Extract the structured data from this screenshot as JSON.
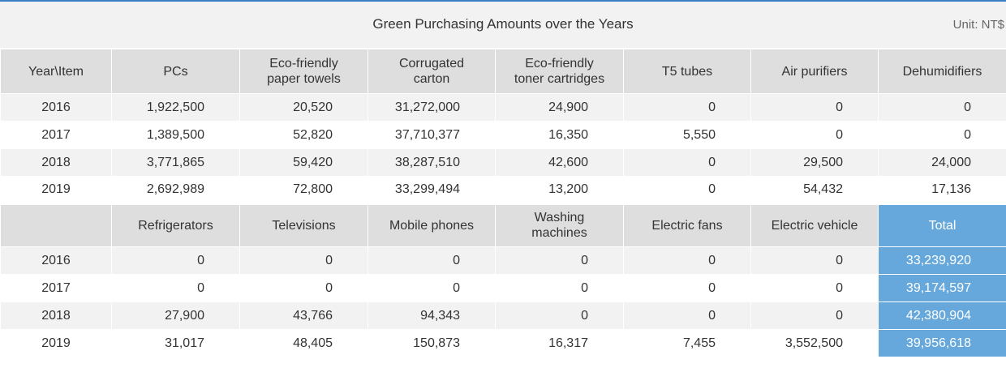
{
  "title": "Green Purchasing Amounts over the Years",
  "unit": "Unit: NT$",
  "table1": {
    "headers": [
      "Year\\Item",
      "PCs",
      "Eco-friendly paper towels",
      "Corrugated carton",
      "Eco-friendly toner cartridges",
      "T5 tubes",
      "Air purifiers",
      "Dehumidifiers"
    ],
    "header_lines": [
      [
        "Year\\Item"
      ],
      [
        "PCs"
      ],
      [
        "Eco-friendly",
        "paper towels"
      ],
      [
        "Corrugated",
        "carton"
      ],
      [
        "Eco-friendly",
        "toner cartridges"
      ],
      [
        "T5 tubes"
      ],
      [
        "Air purifiers"
      ],
      [
        "Dehumidifiers"
      ]
    ],
    "rows": [
      [
        "2016",
        "1,922,500",
        "20,520",
        "31,272,000",
        "24,900",
        "0",
        "0",
        "0"
      ],
      [
        "2017",
        "1,389,500",
        "52,820",
        "37,710,377",
        "16,350",
        "5,550",
        "0",
        "0"
      ],
      [
        "2018",
        "3,771,865",
        "59,420",
        "38,287,510",
        "42,600",
        "0",
        "29,500",
        "24,000"
      ],
      [
        "2019",
        "2,692,989",
        "72,800",
        "33,299,494",
        "13,200",
        "0",
        "54,432",
        "17,136"
      ]
    ]
  },
  "table2": {
    "header_lines": [
      [
        ""
      ],
      [
        "Refrigerators"
      ],
      [
        "Televisions"
      ],
      [
        "Mobile phones"
      ],
      [
        "Washing",
        "machines"
      ],
      [
        "Electric fans"
      ],
      [
        "Electric vehicle"
      ],
      [
        "Total"
      ]
    ],
    "rows": [
      [
        "2016",
        "0",
        "0",
        "0",
        "0",
        "0",
        "0",
        "33,239,920"
      ],
      [
        "2017",
        "0",
        "0",
        "0",
        "0",
        "0",
        "0",
        "39,174,597"
      ],
      [
        "2018",
        "27,900",
        "43,766",
        "94,343",
        "0",
        "0",
        "0",
        "42,380,904"
      ],
      [
        "2019",
        "31,017",
        "48,405",
        "150,873",
        "16,317",
        "7,455",
        "3,552,500",
        "39,956,618"
      ]
    ]
  },
  "colors": {
    "accent": "#3a7fc4",
    "total_bg": "#66a8db",
    "header_bg": "#dedede",
    "stripe_bg": "#f2f2f2"
  }
}
